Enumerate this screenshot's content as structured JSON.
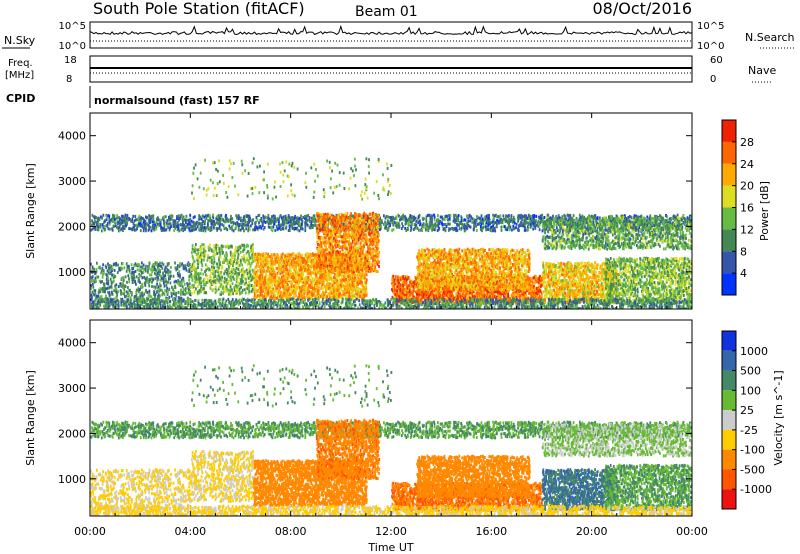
{
  "header": {
    "title": "South Pole Station (fitACF)",
    "beam": "Beam 01",
    "date": "08/Oct/2016"
  },
  "top_panels": {
    "nsky": {
      "label": "N.Sky",
      "tick_top": "10^5",
      "tick_bottom": "10^0",
      "right_label": "N.Search",
      "right_tick_top": "10^5",
      "right_tick_bottom": "10^0"
    },
    "freq": {
      "label_line1": "Freq.",
      "label_line2": "[MHz]",
      "tick_top": "18",
      "tick_bottom": "8",
      "right_label": "Nave",
      "right_tick_top": "60",
      "right_tick_bottom": "0"
    },
    "cpid": {
      "label": "CPID",
      "text": "normalsound (fast) 157 RF"
    }
  },
  "chart_data": [
    {
      "type": "heatmap",
      "parameter": "power",
      "ylabel": "Slant Range [km]",
      "ylim": [
        180,
        4500
      ],
      "yticks": [
        1000,
        2000,
        3000,
        4000
      ],
      "colorbar": {
        "label": "Power [dB]",
        "ticks": [
          "4",
          "8",
          "12",
          "16",
          "20",
          "24",
          "28"
        ],
        "colors": [
          "#0033ff",
          "#3355aa",
          "#448855",
          "#66bb44",
          "#dddd22",
          "#ffaa00",
          "#ff6600",
          "#ee2200"
        ],
        "min": 0,
        "max": 32
      }
    },
    {
      "type": "heatmap",
      "parameter": "velocity",
      "ylabel": "Slant Range [km]",
      "ylim": [
        180,
        4500
      ],
      "yticks": [
        1000,
        2000,
        3000,
        4000
      ],
      "colorbar": {
        "label": "Velocity [m s^-1]",
        "ticks": [
          "1000",
          "500",
          "100",
          "25",
          "-25",
          "-100",
          "-500",
          "-1000"
        ],
        "colors": [
          "#1133dd",
          "#3366aa",
          "#448866",
          "#66bb33",
          "#cccccc",
          "#ffcc00",
          "#ff8800",
          "#ff5500",
          "#ee1111"
        ]
      }
    }
  ],
  "x_axis": {
    "label": "Time UT",
    "ticks": [
      "00:00",
      "04:00",
      "08:00",
      "12:00",
      "16:00",
      "20:00",
      "00:00"
    ]
  }
}
